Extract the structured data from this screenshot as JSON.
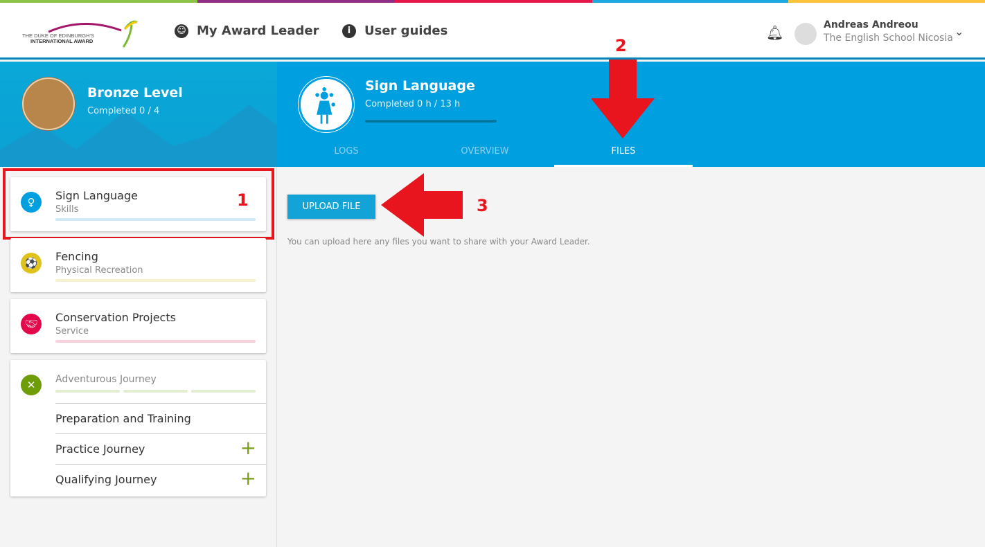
{
  "brand": {
    "logo_text": "THE DUKE OF EDINBURGH'S INTERNATIONAL AWARD",
    "stripe_colors": [
      "#8bc34a",
      "#8e2e86",
      "#e5174a",
      "#1ba8df",
      "#fcc23a"
    ]
  },
  "nav": {
    "my_award_leader": "My Award Leader",
    "user_guides": "User guides"
  },
  "user": {
    "name": "Andreas Andreou",
    "school": "The English School Nicosia"
  },
  "level": {
    "title": "Bronze Level",
    "completed": "Completed 0 / 4"
  },
  "activity": {
    "title": "Sign Language",
    "completed": "Completed 0 h / 13 h",
    "progress": 0
  },
  "tabs": [
    {
      "label": "LOGS"
    },
    {
      "label": "OVERVIEW"
    },
    {
      "label": "FILES",
      "active": true
    }
  ],
  "sections": [
    {
      "title": "Sign Language",
      "category": "Skills",
      "color": "#009fdf",
      "bar": "#cfeaf6"
    },
    {
      "title": "Fencing",
      "category": "Physical Recreation",
      "color": "#e0c21a",
      "bar": "#f7f0cc"
    },
    {
      "title": "Conservation Projects",
      "category": "Service",
      "color": "#e3084a",
      "bar": "#f9cfdc"
    }
  ],
  "journey": {
    "title": "Adventurous Journey",
    "color": "#6f9d0a",
    "items": [
      {
        "label": "Preparation and Training"
      },
      {
        "label": "Practice Journey"
      },
      {
        "label": "Qualifying Journey"
      }
    ]
  },
  "files": {
    "upload_label": "UPLOAD FILE",
    "hint": "You can upload here any files you want to share with your Award Leader."
  },
  "annotations": {
    "one": "1",
    "two": "2",
    "three": "3"
  }
}
